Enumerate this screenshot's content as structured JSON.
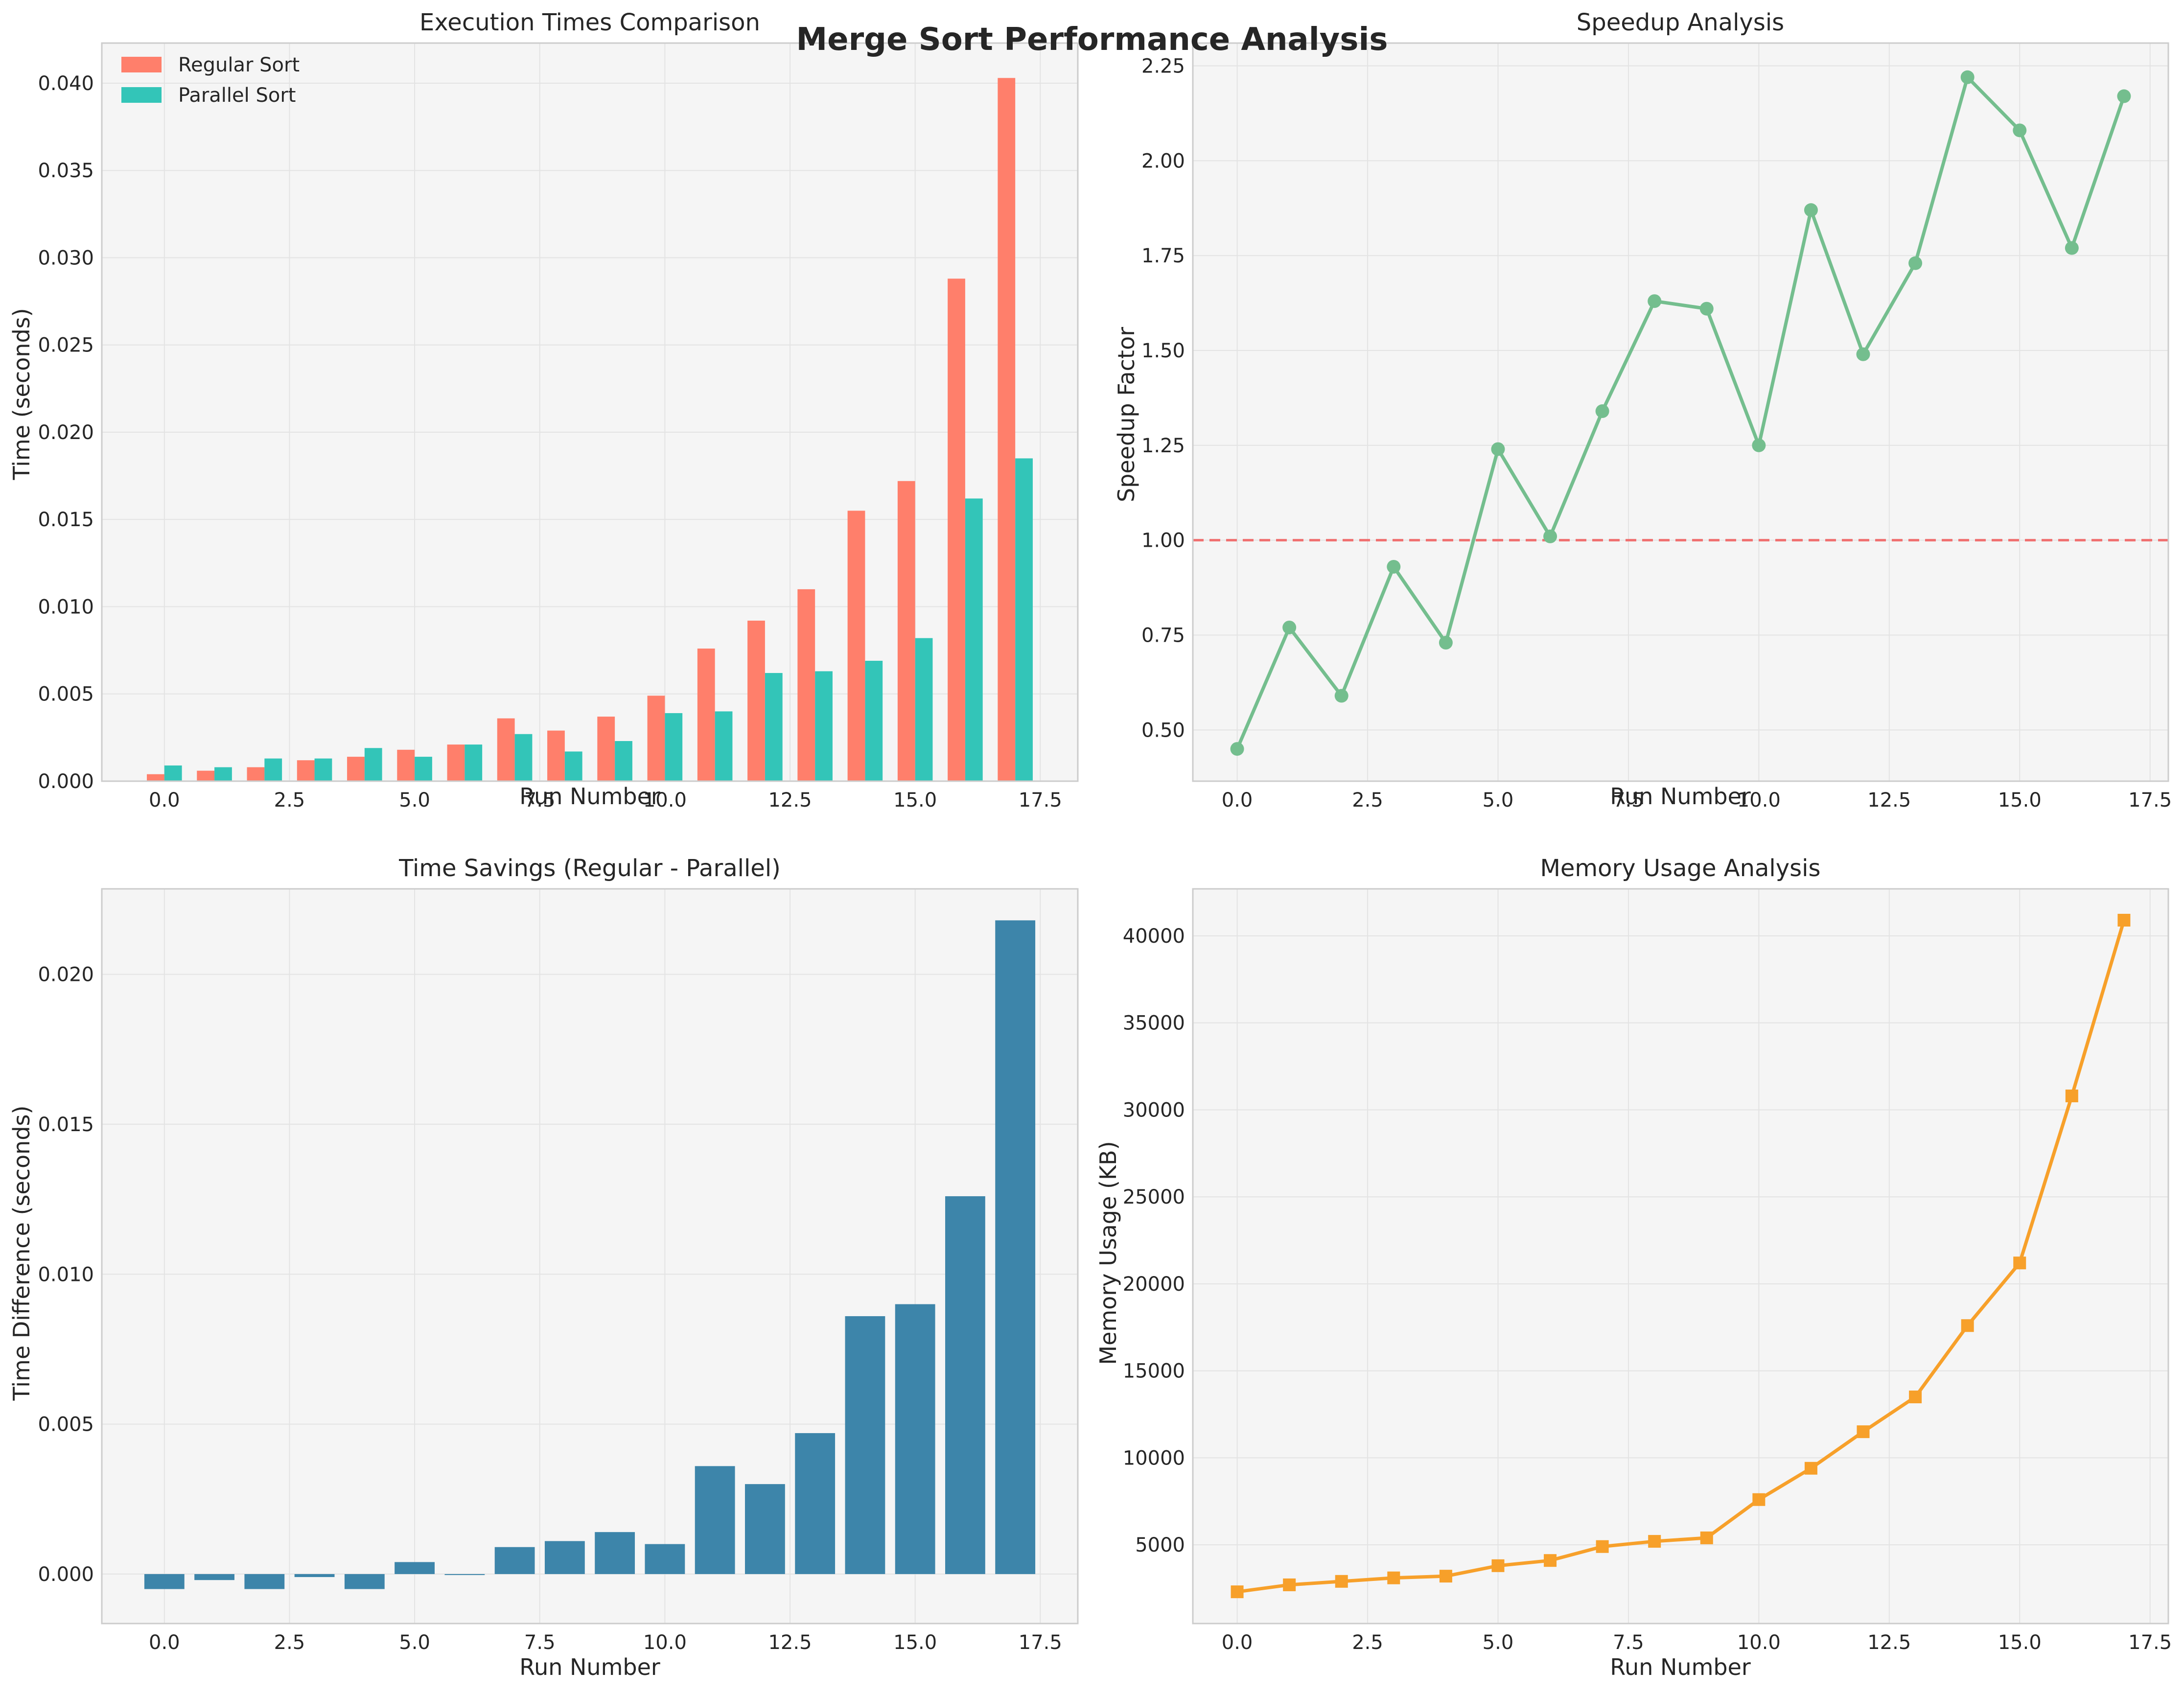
{
  "figure": {
    "suptitle": "Merge Sort Performance Analysis"
  },
  "chart_data": [
    {
      "type": "bar",
      "title": "Execution Times Comparison",
      "xlabel": "Run Number",
      "ylabel": "Time (seconds)",
      "x": [
        0,
        1,
        2,
        3,
        4,
        5,
        6,
        7,
        8,
        9,
        10,
        11,
        12,
        13,
        14,
        15,
        16,
        17
      ],
      "xlim": [
        -1.25,
        18.25
      ],
      "ylim": [
        0,
        0.0423
      ],
      "xticks": [
        0,
        2.5,
        5,
        7.5,
        10,
        12.5,
        15,
        17.5
      ],
      "xtick_labels": [
        "0.0",
        "2.5",
        "5.0",
        "7.5",
        "10.0",
        "12.5",
        "15.0",
        "17.5"
      ],
      "yticks": [
        0,
        0.005,
        0.01,
        0.015,
        0.02,
        0.025,
        0.03,
        0.035,
        0.04
      ],
      "ytick_labels": [
        "0.000",
        "0.005",
        "0.010",
        "0.015",
        "0.020",
        "0.025",
        "0.030",
        "0.035",
        "0.040"
      ],
      "grid": true,
      "legend": "top-left",
      "series": [
        {
          "name": "Regular Sort",
          "color": "#FF7F6B",
          "values": [
            0.0004,
            0.0006,
            0.0008,
            0.0012,
            0.0014,
            0.0018,
            0.0021,
            0.0036,
            0.0029,
            0.0037,
            0.0049,
            0.0076,
            0.0092,
            0.011,
            0.0155,
            0.0172,
            0.0288,
            0.0403
          ]
        },
        {
          "name": "Parallel Sort",
          "color": "#33C5B8",
          "values": [
            0.0009,
            0.0008,
            0.0013,
            0.0013,
            0.0019,
            0.0014,
            0.0021,
            0.0027,
            0.0017,
            0.0023,
            0.0039,
            0.004,
            0.0062,
            0.0063,
            0.0069,
            0.0082,
            0.0162,
            0.0185
          ]
        }
      ]
    },
    {
      "type": "line",
      "title": "Speedup Analysis",
      "xlabel": "Run Number",
      "ylabel": "Speedup Factor",
      "x": [
        0,
        1,
        2,
        3,
        4,
        5,
        6,
        7,
        8,
        9,
        10,
        11,
        12,
        13,
        14,
        15,
        16,
        17
      ],
      "xlim": [
        -0.85,
        17.85
      ],
      "ylim": [
        0.365,
        2.31
      ],
      "xticks": [
        0,
        2.5,
        5,
        7.5,
        10,
        12.5,
        15,
        17.5
      ],
      "xtick_labels": [
        "0.0",
        "2.5",
        "5.0",
        "7.5",
        "10.0",
        "12.5",
        "15.0",
        "17.5"
      ],
      "yticks": [
        0.5,
        0.75,
        1.0,
        1.25,
        1.5,
        1.75,
        2.0,
        2.25
      ],
      "ytick_labels": [
        "0.50",
        "0.75",
        "1.00",
        "1.25",
        "1.50",
        "1.75",
        "2.00",
        "2.25"
      ],
      "grid": true,
      "reference_line": {
        "y": 1.0,
        "color": "#F07070",
        "style": "dashed"
      },
      "series": [
        {
          "color": "#74BE8E",
          "marker": "circle",
          "values": [
            0.45,
            0.77,
            0.59,
            0.93,
            0.73,
            1.24,
            1.01,
            1.34,
            1.63,
            1.61,
            1.25,
            1.87,
            1.49,
            1.73,
            2.22,
            2.08,
            1.77,
            2.17
          ]
        }
      ]
    },
    {
      "type": "bar",
      "title": "Time Savings (Regular - Parallel)",
      "xlabel": "Run Number",
      "ylabel": "Time Difference (seconds)",
      "x": [
        0,
        1,
        2,
        3,
        4,
        5,
        6,
        7,
        8,
        9,
        10,
        11,
        12,
        13,
        14,
        15,
        16,
        17
      ],
      "xlim": [
        -1.25,
        18.25
      ],
      "ylim": [
        -0.00165,
        0.02285
      ],
      "xticks": [
        0,
        2.5,
        5,
        7.5,
        10,
        12.5,
        15,
        17.5
      ],
      "xtick_labels": [
        "0.0",
        "2.5",
        "5.0",
        "7.5",
        "10.0",
        "12.5",
        "15.0",
        "17.5"
      ],
      "yticks": [
        0,
        0.005,
        0.01,
        0.015,
        0.02
      ],
      "ytick_labels": [
        "0.000",
        "0.005",
        "0.010",
        "0.015",
        "0.020"
      ],
      "grid": true,
      "series": [
        {
          "color": "#3D85AA",
          "values": [
            -0.0005,
            -0.0002,
            -0.0005,
            -0.0001,
            -0.0005,
            0.0004,
            0.0,
            0.0009,
            0.0011,
            0.0014,
            0.001,
            0.0036,
            0.003,
            0.0047,
            0.0086,
            0.009,
            0.0126,
            0.0218
          ]
        }
      ]
    },
    {
      "type": "line",
      "title": "Memory Usage Analysis",
      "xlabel": "Run Number",
      "ylabel": "Memory Usage (KB)",
      "x": [
        0,
        1,
        2,
        3,
        4,
        5,
        6,
        7,
        8,
        9,
        10,
        11,
        12,
        13,
        14,
        15,
        16,
        17
      ],
      "xlim": [
        -0.85,
        17.85
      ],
      "ylim": [
        476,
        42700
      ],
      "xticks": [
        0,
        2.5,
        5,
        7.5,
        10,
        12.5,
        15,
        17.5
      ],
      "xtick_labels": [
        "0.0",
        "2.5",
        "5.0",
        "7.5",
        "10.0",
        "12.5",
        "15.0",
        "17.5"
      ],
      "yticks": [
        5000,
        10000,
        15000,
        20000,
        25000,
        30000,
        35000,
        40000
      ],
      "ytick_labels": [
        "5000",
        "10000",
        "15000",
        "20000",
        "25000",
        "30000",
        "35000",
        "40000"
      ],
      "grid": true,
      "series": [
        {
          "color": "#F7A02A",
          "marker": "square",
          "values": [
            2300,
            2700,
            2900,
            3100,
            3200,
            3800,
            4100,
            4900,
            5200,
            5400,
            7600,
            9400,
            11500,
            13500,
            17600,
            21200,
            30800,
            40900
          ]
        }
      ]
    }
  ]
}
